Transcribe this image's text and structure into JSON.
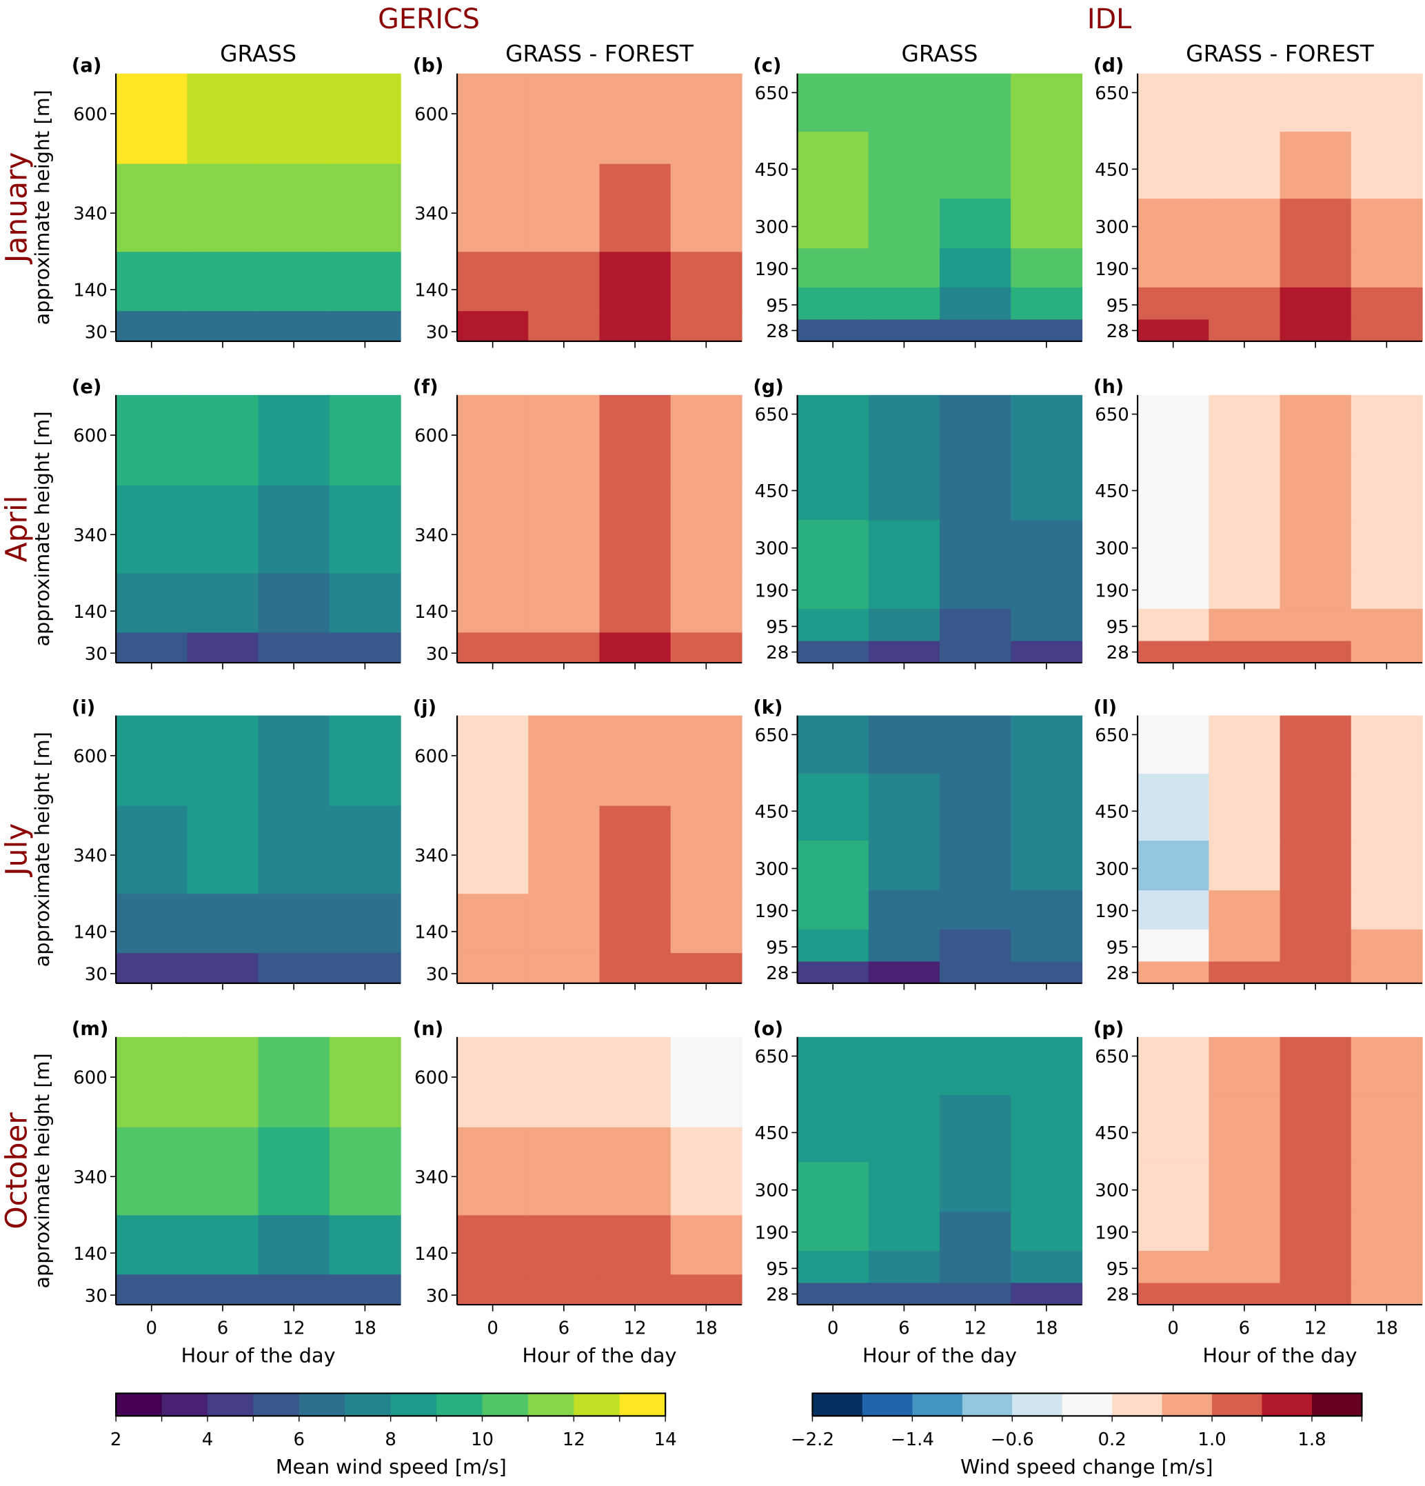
{
  "figure": {
    "groups": [
      "GERICS",
      "IDL"
    ],
    "column_titles": [
      "GRASS",
      "GRASS - FOREST",
      "GRASS",
      "GRASS - FOREST"
    ],
    "row_labels": [
      "January",
      "April",
      "July",
      "October"
    ],
    "ylabel": "approximate height [m]",
    "xlabel": "Hour of the day"
  },
  "colors": {
    "title": "#8b0000",
    "speed_cmap": [
      "#440154",
      "#482173",
      "#433e85",
      "#38588c",
      "#2d708e",
      "#25858e",
      "#1e9b8a",
      "#2ab07f",
      "#52c569",
      "#86d549",
      "#c2df23",
      "#fde725"
    ],
    "change_cmap": [
      "#053061",
      "#2166ac",
      "#4393c3",
      "#92c5de",
      "#d1e5f0",
      "#f7f7f7",
      "#fddbc7",
      "#f4a582",
      "#d6604d",
      "#b2182b",
      "#67001f"
    ]
  },
  "chart_data": {
    "type": "heatmap",
    "x": [
      0,
      6,
      12,
      18
    ],
    "xlim": [
      -3,
      21
    ],
    "xticks": [
      "0",
      "6",
      "12",
      "18"
    ],
    "gerics_axis": {
      "yticks": [
        30,
        140,
        340,
        600
      ],
      "row_edges": [
        5,
        85,
        240,
        470,
        705
      ]
    },
    "idl_axis": {
      "yticks": [
        28,
        95,
        190,
        300,
        450,
        650
      ],
      "row_edges": [
        0,
        58,
        142,
        244,
        374,
        549,
        700
      ]
    },
    "panels": [
      {
        "label": "(a)",
        "model": "GERICS",
        "column": "GRASS",
        "month": "January",
        "cmap": "speed",
        "values": [
          [
            6.5,
            6.5,
            6.5,
            6.5
          ],
          [
            9.5,
            9.5,
            9.5,
            9.5
          ],
          [
            11.5,
            11.5,
            11.5,
            11.5
          ],
          [
            13.5,
            12.5,
            12.5,
            12.5
          ]
        ]
      },
      {
        "label": "(b)",
        "model": "GERICS",
        "column": "GRASS - FOREST",
        "month": "January",
        "cmap": "change",
        "values": [
          [
            1.6,
            1.2,
            1.6,
            1.2
          ],
          [
            1.2,
            1.2,
            1.6,
            1.2
          ],
          [
            0.8,
            0.8,
            1.2,
            0.8
          ],
          [
            0.8,
            0.8,
            0.8,
            0.8
          ]
        ]
      },
      {
        "label": "(c)",
        "model": "IDL",
        "column": "GRASS",
        "month": "January",
        "cmap": "speed",
        "values": [
          [
            5.5,
            5.5,
            5.5,
            5.5
          ],
          [
            9.5,
            9.5,
            7.5,
            9.5
          ],
          [
            10.5,
            10.5,
            8.5,
            10.5
          ],
          [
            11.5,
            10.5,
            9.5,
            11.5
          ],
          [
            11.5,
            10.5,
            10.5,
            11.5
          ],
          [
            10.5,
            10.5,
            10.5,
            11.5
          ]
        ]
      },
      {
        "label": "(d)",
        "model": "IDL",
        "column": "GRASS - FOREST",
        "month": "January",
        "cmap": "change",
        "values": [
          [
            1.6,
            1.2,
            1.6,
            1.2
          ],
          [
            1.2,
            1.2,
            1.6,
            1.2
          ],
          [
            0.8,
            0.8,
            1.2,
            0.8
          ],
          [
            0.8,
            0.8,
            1.2,
            0.8
          ],
          [
            0.4,
            0.4,
            0.8,
            0.4
          ],
          [
            0.4,
            0.4,
            0.4,
            0.4
          ]
        ]
      },
      {
        "label": "(e)",
        "model": "GERICS",
        "column": "GRASS",
        "month": "April",
        "cmap": "speed",
        "values": [
          [
            5.5,
            4.5,
            5.5,
            5.5
          ],
          [
            7.5,
            7.5,
            6.5,
            7.5
          ],
          [
            8.5,
            8.5,
            7.5,
            8.5
          ],
          [
            9.5,
            9.5,
            8.5,
            9.5
          ]
        ]
      },
      {
        "label": "(f)",
        "model": "GERICS",
        "column": "GRASS - FOREST",
        "month": "April",
        "cmap": "change",
        "values": [
          [
            1.2,
            1.2,
            1.6,
            1.2
          ],
          [
            0.8,
            0.8,
            1.2,
            0.8
          ],
          [
            0.8,
            0.8,
            1.2,
            0.8
          ],
          [
            0.8,
            0.8,
            1.2,
            0.8
          ]
        ]
      },
      {
        "label": "(g)",
        "model": "IDL",
        "column": "GRASS",
        "month": "April",
        "cmap": "speed",
        "values": [
          [
            5.5,
            4.5,
            5.5,
            4.5
          ],
          [
            8.5,
            7.5,
            5.5,
            6.5
          ],
          [
            9.5,
            8.5,
            6.5,
            6.5
          ],
          [
            9.5,
            8.5,
            6.5,
            6.5
          ],
          [
            8.5,
            7.5,
            6.5,
            7.5
          ],
          [
            8.5,
            7.5,
            6.5,
            7.5
          ]
        ]
      },
      {
        "label": "(h)",
        "model": "IDL",
        "column": "GRASS - FOREST",
        "month": "April",
        "cmap": "change",
        "values": [
          [
            1.2,
            1.2,
            1.2,
            0.8
          ],
          [
            0.4,
            0.8,
            0.8,
            0.8
          ],
          [
            0.0,
            0.4,
            0.8,
            0.4
          ],
          [
            0.0,
            0.4,
            0.8,
            0.4
          ],
          [
            0.0,
            0.4,
            0.8,
            0.4
          ],
          [
            0.0,
            0.4,
            0.8,
            0.4
          ]
        ]
      },
      {
        "label": "(i)",
        "model": "GERICS",
        "column": "GRASS",
        "month": "July",
        "cmap": "speed",
        "values": [
          [
            4.5,
            4.5,
            5.5,
            5.5
          ],
          [
            6.5,
            6.5,
            6.5,
            6.5
          ],
          [
            7.5,
            8.5,
            7.5,
            7.5
          ],
          [
            8.5,
            8.5,
            7.5,
            8.5
          ]
        ]
      },
      {
        "label": "(j)",
        "model": "GERICS",
        "column": "GRASS - FOREST",
        "month": "July",
        "cmap": "change",
        "values": [
          [
            0.8,
            0.8,
            1.2,
            1.2
          ],
          [
            0.8,
            0.8,
            1.2,
            0.8
          ],
          [
            0.4,
            0.8,
            1.2,
            0.8
          ],
          [
            0.4,
            0.8,
            0.8,
            0.8
          ]
        ]
      },
      {
        "label": "(k)",
        "model": "IDL",
        "column": "GRASS",
        "month": "July",
        "cmap": "speed",
        "values": [
          [
            4.5,
            3.5,
            5.5,
            5.5
          ],
          [
            8.5,
            6.5,
            5.5,
            6.5
          ],
          [
            9.5,
            6.5,
            6.5,
            6.5
          ],
          [
            9.5,
            7.5,
            6.5,
            7.5
          ],
          [
            8.5,
            7.5,
            6.5,
            7.5
          ],
          [
            7.5,
            6.5,
            6.5,
            7.5
          ]
        ]
      },
      {
        "label": "(l)",
        "model": "IDL",
        "column": "GRASS - FOREST",
        "month": "July",
        "cmap": "change",
        "values": [
          [
            0.8,
            1.2,
            1.2,
            0.8
          ],
          [
            0.0,
            0.8,
            1.2,
            0.8
          ],
          [
            -0.4,
            0.8,
            1.2,
            0.4
          ],
          [
            -0.8,
            0.4,
            1.2,
            0.4
          ],
          [
            -0.4,
            0.4,
            1.2,
            0.4
          ],
          [
            0.0,
            0.4,
            1.2,
            0.4
          ]
        ]
      },
      {
        "label": "(m)",
        "model": "GERICS",
        "column": "GRASS",
        "month": "October",
        "cmap": "speed",
        "values": [
          [
            5.5,
            5.5,
            5.5,
            5.5
          ],
          [
            8.5,
            8.5,
            7.5,
            8.5
          ],
          [
            10.5,
            10.5,
            9.5,
            10.5
          ],
          [
            11.5,
            11.5,
            10.5,
            11.5
          ]
        ]
      },
      {
        "label": "(n)",
        "model": "GERICS",
        "column": "GRASS - FOREST",
        "month": "October",
        "cmap": "change",
        "values": [
          [
            1.2,
            1.2,
            1.2,
            1.2
          ],
          [
            1.2,
            1.2,
            1.2,
            0.8
          ],
          [
            0.8,
            0.8,
            0.8,
            0.4
          ],
          [
            0.4,
            0.4,
            0.4,
            0.0
          ]
        ]
      },
      {
        "label": "(o)",
        "model": "IDL",
        "column": "GRASS",
        "month": "October",
        "cmap": "speed",
        "values": [
          [
            5.5,
            5.5,
            5.5,
            4.5
          ],
          [
            8.5,
            7.5,
            6.5,
            7.5
          ],
          [
            9.5,
            8.5,
            6.5,
            8.5
          ],
          [
            9.5,
            8.5,
            7.5,
            8.5
          ],
          [
            8.5,
            8.5,
            7.5,
            8.5
          ],
          [
            8.5,
            8.5,
            8.5,
            8.5
          ]
        ]
      },
      {
        "label": "(p)",
        "model": "IDL",
        "column": "GRASS - FOREST",
        "month": "October",
        "cmap": "change",
        "values": [
          [
            1.2,
            1.2,
            1.2,
            0.8
          ],
          [
            0.8,
            0.8,
            1.2,
            0.8
          ],
          [
            0.4,
            0.8,
            1.2,
            0.8
          ],
          [
            0.4,
            0.8,
            1.2,
            0.8
          ],
          [
            0.4,
            0.8,
            1.2,
            0.8
          ],
          [
            0.4,
            0.8,
            1.2,
            0.8
          ]
        ]
      }
    ],
    "colorbars": [
      {
        "name": "speed",
        "label": "Mean wind speed [m/s]",
        "range": [
          2,
          14
        ],
        "bins": 12,
        "ticks": [
          2,
          4,
          6,
          8,
          10,
          12,
          14
        ],
        "tick_labels": [
          "2",
          "4",
          "6",
          "8",
          "10",
          "12",
          "14"
        ]
      },
      {
        "name": "change",
        "label": "Wind speed change [m/s]",
        "range": [
          -2.2,
          2.2
        ],
        "bins": 11,
        "ticks": [
          -2.2,
          -1.4,
          -0.6,
          0.2,
          1.0,
          1.8
        ],
        "tick_labels": [
          "−2.2",
          "−1.4",
          "−0.6",
          "0.2",
          "1.0",
          "1.8"
        ]
      }
    ]
  }
}
